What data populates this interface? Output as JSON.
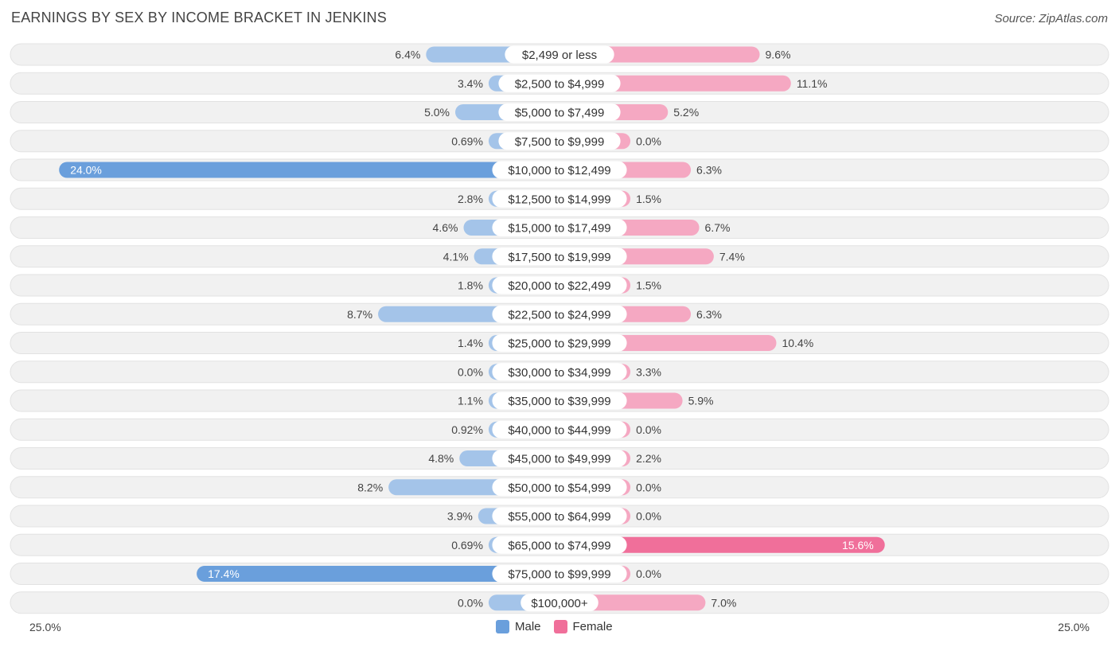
{
  "title": "EARNINGS BY SEX BY INCOME BRACKET IN JENKINS",
  "source": "Source: ZipAtlas.com",
  "colors": {
    "male_strong": "#6a9fdc",
    "male_light": "#a4c4e9",
    "female_strong": "#f06f9a",
    "female_light": "#f5a8c2",
    "row_bg": "#f1f1f1",
    "row_border": "#e2e2e2"
  },
  "legend": {
    "male": "Male",
    "female": "Female"
  },
  "axis": {
    "left": "25.0%",
    "right": "25.0%"
  },
  "chart_data": {
    "type": "bar",
    "orientation": "horizontal-diverging",
    "title": "EARNINGS BY SEX BY INCOME BRACKET IN JENKINS",
    "xlim": [
      -25,
      25
    ],
    "categories": [
      "$2,499 or less",
      "$2,500 to $4,999",
      "$5,000 to $7,499",
      "$7,500 to $9,999",
      "$10,000 to $12,499",
      "$12,500 to $14,999",
      "$15,000 to $17,499",
      "$17,500 to $19,999",
      "$20,000 to $22,499",
      "$22,500 to $24,999",
      "$25,000 to $29,999",
      "$30,000 to $34,999",
      "$35,000 to $39,999",
      "$40,000 to $44,999",
      "$45,000 to $49,999",
      "$50,000 to $54,999",
      "$55,000 to $64,999",
      "$65,000 to $74,999",
      "$75,000 to $99,999",
      "$100,000+"
    ],
    "series": [
      {
        "name": "Male",
        "values": [
          6.4,
          3.4,
          5.0,
          0.69,
          24.0,
          2.8,
          4.6,
          4.1,
          1.8,
          8.7,
          1.4,
          0.0,
          1.1,
          0.92,
          4.8,
          8.2,
          3.9,
          0.69,
          17.4,
          0.0
        ],
        "labels": [
          "6.4%",
          "3.4%",
          "5.0%",
          "0.69%",
          "24.0%",
          "2.8%",
          "4.6%",
          "4.1%",
          "1.8%",
          "8.7%",
          "1.4%",
          "0.0%",
          "1.1%",
          "0.92%",
          "4.8%",
          "8.2%",
          "3.9%",
          "0.69%",
          "17.4%",
          "0.0%"
        ]
      },
      {
        "name": "Female",
        "values": [
          9.6,
          11.1,
          5.2,
          0.0,
          6.3,
          1.5,
          6.7,
          7.4,
          1.5,
          6.3,
          10.4,
          3.3,
          5.9,
          0.0,
          2.2,
          0.0,
          0.0,
          15.6,
          0.0,
          7.0
        ],
        "labels": [
          "9.6%",
          "11.1%",
          "5.2%",
          "0.0%",
          "6.3%",
          "1.5%",
          "6.7%",
          "7.4%",
          "1.5%",
          "6.3%",
          "10.4%",
          "3.3%",
          "5.9%",
          "0.0%",
          "2.2%",
          "0.0%",
          "0.0%",
          "15.6%",
          "0.0%",
          "7.0%"
        ]
      }
    ],
    "legend": [
      "Male",
      "Female"
    ],
    "legend_position": "bottom-center"
  }
}
